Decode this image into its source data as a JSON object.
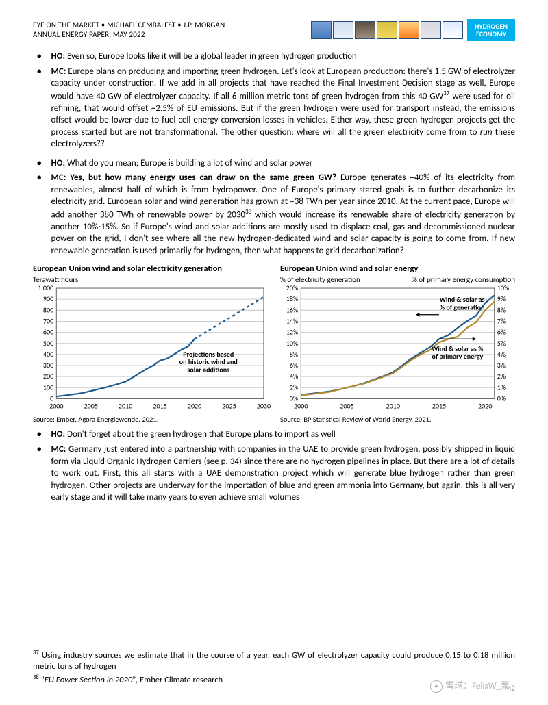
{
  "header": {
    "line1": "EYE ON THE MARKET • MICHAEL CEMBALEST • J.P. MORGAN",
    "line2": "ANNUAL ENERGY PAPER, MAY 2022",
    "badge_l1": "HYDROGEN",
    "badge_l2": "ECONOMY"
  },
  "bul1": {
    "a_tag": "HO:",
    "a_txt": " Even so, Europe looks like it will be a global leader in green hydrogen production",
    "b_tag": "MC:",
    "b_txt": " Europe plans on producing and importing green hydrogen.  Let's look at European production: there's 1.5 GW of electrolyzer capacity under construction.  If we add in all projects that have reached the Final Investment Decision stage as well, Europe would have 40 GW of electrolyzer capacity.  If all 6 million metric tons of green hydrogen from this 40 GW",
    "b_sup": "37",
    "b_txt2": " were used for oil refining, that would offset ~2.5% of EU emissions.  But if the green hydrogen were used for transport instead, the emissions offset would be lower due to fuel cell energy conversion losses in vehicles.  Either way, these green hydrogen projects get the process started but are not transformational.  The other question: where will all the green electricity come from to ",
    "b_em": "run",
    "b_txt3": " these electrolyzers??"
  },
  "bul2": {
    "a_tag": "HO:",
    "a_txt": " What do you mean; Europe is building a lot of wind and solar power",
    "b_tag": " MC:",
    "b_bold": "  Yes, but how many energy uses can draw on the same green GW?",
    "b_txt": "  Europe generates ~40% of its electricity from renewables, almost half of which is from hydropower.  One of Europe's primary stated goals is to further decarbonize its electricity grid.   European solar and wind generation has grown at ~38 TWh per year since 2010.  At the current pace, Europe will add another 380 TWh of renewable power by 2030",
    "b_sup": "38",
    "b_txt2": " which would increase its renewable share of electricity generation by another 10%-15%.  So if Europe's wind and solar additions are mostly used to displace coal, gas and decommissioned nuclear power on the grid, I don't see where all the new hydrogen-dedicated wind and solar capacity is going to come from.  If new renewable generation is used primarily for hydrogen, then what happens to grid decarbonization?"
  },
  "chart1": {
    "title": "European Union wind and solar electricity generation",
    "sub": "Terawatt hours",
    "src": "Source: Ember, Agora Energiewende. 2021.",
    "note_l1": "Projections based",
    "note_l2": "on historic wind and",
    "note_l3": "solar additions",
    "x": {
      "min": 2000,
      "max": 2030,
      "step": 5,
      "ticks": [
        "2000",
        "2005",
        "2010",
        "2015",
        "2020",
        "2025",
        "2030"
      ]
    },
    "y": {
      "min": 0,
      "max": 1000,
      "step": 100,
      "ticks": [
        "0",
        "100",
        "200",
        "300",
        "400",
        "500",
        "600",
        "700",
        "800",
        "900",
        "1,000"
      ]
    },
    "color": "#1f5b8f",
    "solid_pts": [
      [
        2000,
        20
      ],
      [
        2001,
        28
      ],
      [
        2002,
        36
      ],
      [
        2003,
        44
      ],
      [
        2004,
        55
      ],
      [
        2005,
        70
      ],
      [
        2006,
        85
      ],
      [
        2007,
        100
      ],
      [
        2008,
        118
      ],
      [
        2009,
        135
      ],
      [
        2010,
        155
      ],
      [
        2011,
        190
      ],
      [
        2012,
        230
      ],
      [
        2013,
        268
      ],
      [
        2014,
        300
      ],
      [
        2015,
        345
      ],
      [
        2016,
        362
      ],
      [
        2017,
        400
      ],
      [
        2018,
        440
      ],
      [
        2019,
        470
      ],
      [
        2020,
        540
      ]
    ],
    "dash_pts": [
      [
        2020,
        540
      ],
      [
        2021,
        578
      ],
      [
        2022,
        616
      ],
      [
        2023,
        654
      ],
      [
        2024,
        692
      ],
      [
        2025,
        730
      ],
      [
        2026,
        768
      ],
      [
        2027,
        806
      ],
      [
        2028,
        844
      ],
      [
        2029,
        882
      ],
      [
        2030,
        920
      ]
    ]
  },
  "chart2": {
    "title": "European Union wind and solar energy",
    "subL": "% of electricity generation",
    "subR": "% of primary energy consumption",
    "src": "Source: BP Statistical Review of World Energy. 2021.",
    "ann1_l1": "Wind & solar as",
    "ann1_l2": "% of generation",
    "ann2_l1": "Wind & solar as %",
    "ann2_l2": "of primary energy",
    "x": {
      "min": 2000,
      "max": 2021,
      "ticks": [
        "2000",
        "2005",
        "2010",
        "2015",
        "2020"
      ]
    },
    "yL": {
      "min": 0,
      "max": 20,
      "step": 2,
      "ticks": [
        "0%",
        "2%",
        "4%",
        "6%",
        "8%",
        "10%",
        "12%",
        "14%",
        "16%",
        "18%",
        "20%"
      ]
    },
    "yR": {
      "min": 0,
      "max": 10,
      "step": 1,
      "ticks": [
        "0%",
        "1%",
        "2%",
        "3%",
        "4%",
        "5%",
        "6%",
        "7%",
        "8%",
        "9%",
        "10%"
      ]
    },
    "color1": "#1f5b8f",
    "color2": "#b38b2e",
    "s1_pts": [
      [
        2000,
        0.7
      ],
      [
        2001,
        0.9
      ],
      [
        2002,
        1.1
      ],
      [
        2003,
        1.3
      ],
      [
        2004,
        1.6
      ],
      [
        2005,
        2.0
      ],
      [
        2006,
        2.4
      ],
      [
        2007,
        2.9
      ],
      [
        2008,
        3.5
      ],
      [
        2009,
        4.1
      ],
      [
        2010,
        4.8
      ],
      [
        2011,
        6.0
      ],
      [
        2012,
        7.3
      ],
      [
        2013,
        8.3
      ],
      [
        2014,
        9.3
      ],
      [
        2015,
        10.8
      ],
      [
        2016,
        11.5
      ],
      [
        2017,
        12.8
      ],
      [
        2018,
        14.0
      ],
      [
        2019,
        15.0
      ],
      [
        2020,
        17.3
      ],
      [
        2021,
        18.7
      ]
    ],
    "s2_pts": [
      [
        2000,
        0.3
      ],
      [
        2001,
        0.4
      ],
      [
        2002,
        0.5
      ],
      [
        2003,
        0.6
      ],
      [
        2004,
        0.8
      ],
      [
        2005,
        1.0
      ],
      [
        2006,
        1.2
      ],
      [
        2007,
        1.4
      ],
      [
        2008,
        1.7
      ],
      [
        2009,
        2.0
      ],
      [
        2010,
        2.3
      ],
      [
        2011,
        2.9
      ],
      [
        2012,
        3.5
      ],
      [
        2013,
        4.0
      ],
      [
        2014,
        4.4
      ],
      [
        2015,
        5.1
      ],
      [
        2016,
        5.4
      ],
      [
        2017,
        5.6
      ],
      [
        2018,
        6.4
      ],
      [
        2019,
        6.9
      ],
      [
        2020,
        8.0
      ],
      [
        2021,
        8.8
      ]
    ]
  },
  "bul3": {
    "a_tag": "HO:",
    "a_txt": "  Don't forget about the green hydrogen that Europe plans to import as well",
    "b_tag": "MC:",
    "b_txt": " Germany just entered into a partnership with companies in the UAE to provide green hydrogen, possibly shipped in liquid form via Liquid Organic Hydrogen Carriers (see p. 34) since there are no hydrogen pipelines in place.  But there are a lot of details to work out.  First, this all starts with a UAE demonstration project which will generate blue hydrogen rather than green hydrogen.  Other projects are underway for the importation of blue and green ammonia into Germany, but again, this is all very early stage and it will take many years to even achieve small volumes"
  },
  "fn": {
    "f37": " Using industry sources we estimate that in the course of a year, each GW of electrolyzer capacity could produce 0.15 to 0.18 million metric tons of hydrogen",
    "f38a": " \"",
    "f38i": "EU Power Section in 2020",
    "f38b": "\", Ember Climate research"
  },
  "pagenum": "42",
  "watermark": "雪球：FelixW_栗"
}
